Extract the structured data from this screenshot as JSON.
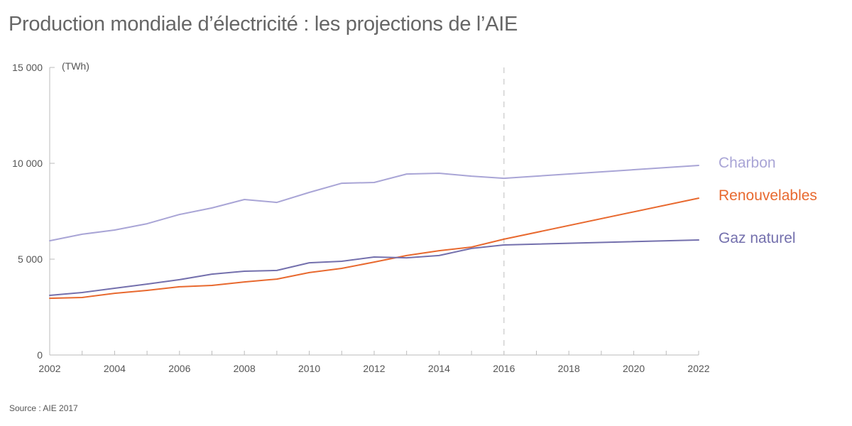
{
  "title": "Production mondiale d’électricité : les projections de l’AIE",
  "source": "Source : AIE 2017",
  "chart_data": {
    "type": "line",
    "title": "Production mondiale d’électricité : les projections de l’AIE",
    "xlabel": "",
    "ylabel": "(TWh)",
    "unit": "(TWh)",
    "xlim": [
      2002,
      2022
    ],
    "ylim": [
      0,
      15000
    ],
    "x_ticks": [
      2002,
      2004,
      2006,
      2008,
      2010,
      2012,
      2014,
      2016,
      2018,
      2020,
      2022
    ],
    "x_tick_labels": [
      "2002",
      "2004",
      "2006",
      "2008",
      "2010",
      "2012",
      "2014",
      "2016",
      "2018",
      "2020",
      "2022"
    ],
    "y_ticks": [
      0,
      5000,
      10000,
      15000
    ],
    "y_tick_labels": [
      "0",
      "5 000",
      "10 000",
      "15 000"
    ],
    "grid": false,
    "projection_start": 2016,
    "legend": "right (direct labels)",
    "x": [
      2002,
      2003,
      2004,
      2005,
      2006,
      2007,
      2008,
      2009,
      2010,
      2011,
      2012,
      2013,
      2014,
      2015,
      2016,
      2022
    ],
    "series": [
      {
        "name": "Charbon",
        "color": "#a9a5d6",
        "values": [
          5960,
          6300,
          6520,
          6850,
          7330,
          7670,
          8110,
          7960,
          8480,
          8960,
          9000,
          9440,
          9480,
          9330,
          9220,
          9890
        ]
      },
      {
        "name": "Renouvelables",
        "color": "#e8692f",
        "values": [
          2960,
          3000,
          3220,
          3370,
          3560,
          3630,
          3810,
          3960,
          4300,
          4520,
          4850,
          5190,
          5440,
          5630,
          6040,
          8180
        ]
      },
      {
        "name": "Gaz naturel",
        "color": "#7470ad",
        "values": [
          3110,
          3260,
          3480,
          3700,
          3930,
          4220,
          4370,
          4410,
          4810,
          4890,
          5110,
          5070,
          5190,
          5560,
          5740,
          6000
        ]
      }
    ]
  }
}
